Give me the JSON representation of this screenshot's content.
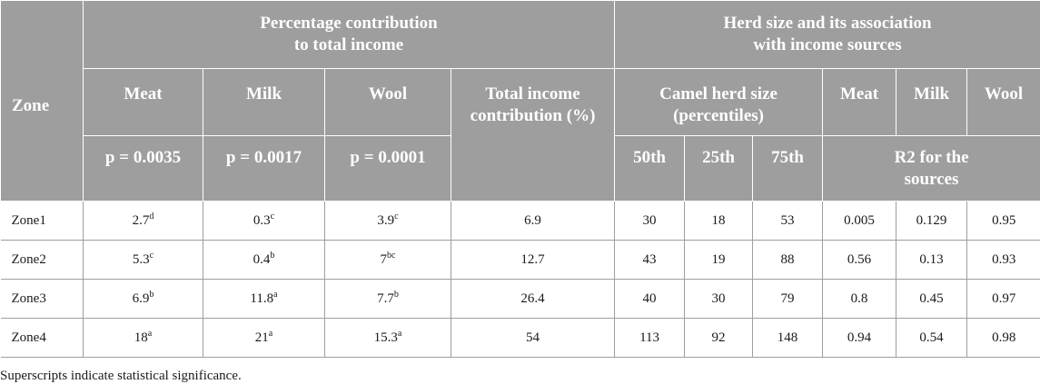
{
  "header": {
    "zone": "Zone",
    "percentage_group": "Percentage contribution to total income",
    "herd_group": "Herd size and its association with income sources",
    "meat": "Meat",
    "milk": "Milk",
    "wool": "Wool",
    "total_income": "Total income contribution (%)",
    "camel_herd_size": "Camel herd size (percentiles)",
    "herd_meat": "Meat",
    "herd_milk": "Milk",
    "herd_wool": "Wool",
    "p_meat": "p = 0.0035",
    "p_milk": "p = 0.0017",
    "p_wool": "p = 0.0001",
    "p50": "50th",
    "p25": "25th",
    "p75": "75th",
    "r2_sources": "R2 for the sources"
  },
  "rows": [
    {
      "zone": "Zone1",
      "meat": "2.7",
      "meat_sup": "d",
      "milk": "0.3",
      "milk_sup": "c",
      "wool": "3.9",
      "wool_sup": "c",
      "total": "6.9",
      "p50": "30",
      "p25": "18",
      "p75": "53",
      "r2_meat": "0.005",
      "r2_milk": "0.129",
      "r2_wool": "0.95"
    },
    {
      "zone": "Zone2",
      "meat": "5.3",
      "meat_sup": "c",
      "milk": "0.4",
      "milk_sup": "b",
      "wool": "7",
      "wool_sup": "bc",
      "total": "12.7",
      "p50": "43",
      "p25": "19",
      "p75": "88",
      "r2_meat": "0.56",
      "r2_milk": "0.13",
      "r2_wool": "0.93"
    },
    {
      "zone": "Zone3",
      "meat": "6.9",
      "meat_sup": "b",
      "milk": "11.8",
      "milk_sup": "a",
      "wool": "7.7",
      "wool_sup": "b",
      "total": "26.4",
      "p50": "40",
      "p25": "30",
      "p75": "79",
      "r2_meat": "0.8",
      "r2_milk": "0.45",
      "r2_wool": "0.97"
    },
    {
      "zone": "Zone4",
      "meat": "18",
      "meat_sup": "a",
      "milk": "21",
      "milk_sup": "a",
      "wool": "15.3",
      "wool_sup": "a",
      "total": "54",
      "p50": "113",
      "p25": "92",
      "p75": "148",
      "r2_meat": "0.94",
      "r2_milk": "0.54",
      "r2_wool": "0.98"
    }
  ],
  "footnote": "Superscripts indicate statistical significance."
}
